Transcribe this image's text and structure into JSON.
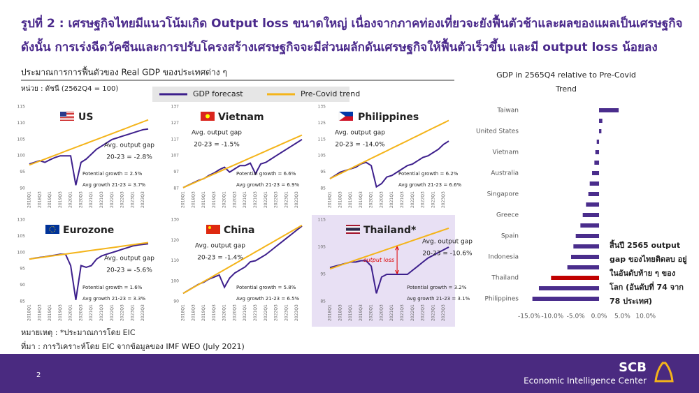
{
  "header": {
    "title_lines": [
      "รูปที่ 2 : เศรษฐกิจไทยมีแนวโน้มเกิด Output loss ขนาดใหญ่ เนื่องจากภาคท่องเที่ยวจะยังฟื้นตัวช้าและผลของแผลเป็นเศรษฐกิจ",
      "ดังนั้น การเร่งฉีดวัคซีนและการปรับโครงสร้างเศรษฐกิจจะมีส่วนผลักดันเศรษฐกิจให้ฟื้นตัวเร็วขึ้น และมี output loss น้อยลง"
    ],
    "subtitle": "ประมาณการการฟื้นตัวของ Real GDP ของประเทศต่าง ๆ",
    "unit": "หน่วย : ดัชนี (2562Q4 = 100)"
  },
  "legend": [
    {
      "name": "GDP forecast",
      "color": "#3d1f8c"
    },
    {
      "name": "Pre-Covid trend",
      "color": "#f4b41a"
    }
  ],
  "notes": [
    "หมายเหตุ : *ประมาณการโดย EIC",
    "ที่มา : การวิเคราะห์โดย EIC จากข้อมูลของ IMF WEO (July 2021)"
  ],
  "footer": {
    "page": "2",
    "brand": "SCB",
    "unit": "Economic Intelligence Center"
  },
  "chart_data": [
    {
      "type": "line",
      "title": "US",
      "categories": [
        "2018Q1",
        null,
        "2018Q3",
        null,
        "2019Q1",
        null,
        "2019Q3",
        null,
        "2020Q1",
        null,
        "2020Q3",
        null,
        "2021Q1",
        null,
        "2021Q3",
        null,
        "2022Q1",
        null,
        "2022Q3",
        null,
        "2023Q1",
        null,
        "2023Q3",
        null
      ],
      "series": [
        {
          "values": [
            97.5,
            98,
            98.5,
            98,
            98.8,
            99.5,
            100,
            100,
            100,
            91,
            98,
            99,
            100.5,
            102,
            103,
            104,
            105,
            105.5,
            106,
            106.5,
            107,
            107.5,
            108,
            108.2
          ]
        },
        {
          "values": [
            97.2,
            97.8,
            98.4,
            99,
            99.6,
            100.2,
            100.8,
            101.4,
            102,
            102.6,
            103.2,
            103.8,
            104.4,
            105,
            105.6,
            106.2,
            106.8,
            107.4,
            108,
            108.6,
            109.2,
            109.8,
            110.4,
            111
          ]
        }
      ],
      "ylim": [
        90,
        115
      ],
      "yticks": [
        90,
        95,
        100,
        105,
        110,
        115
      ],
      "annotations": {
        "gap_label": "Avg. output gap",
        "gap": "20-23 = -2.8%",
        "potential": "Potential growth = 2.5%",
        "growth": "Avg growth 21-23 = 3.7%"
      }
    },
    {
      "type": "line",
      "title": "Vietnam",
      "categories": [
        "2018Q1",
        null,
        "2018Q3",
        null,
        "2019Q1",
        null,
        "2019Q3",
        null,
        "2020Q1",
        null,
        "2020Q3",
        null,
        "2021Q1",
        null,
        "2021Q3",
        null,
        "2022Q1",
        null,
        "2022Q3",
        null,
        "2023Q1",
        null,
        "2023Q3",
        null
      ],
      "series": [
        {
          "values": [
            87.5,
            89,
            90.5,
            92,
            93,
            95,
            96.5,
            98.5,
            100,
            97,
            99,
            101,
            101,
            102.5,
            96,
            102,
            103,
            105,
            107,
            109,
            111,
            113,
            115,
            117
          ]
        },
        {
          "values": [
            87.5,
            88.9,
            90.3,
            91.7,
            93.1,
            94.5,
            95.9,
            97.3,
            98.7,
            100.1,
            101.5,
            102.9,
            104.3,
            105.7,
            107.1,
            108.5,
            109.9,
            111.3,
            112.7,
            114.1,
            115.5,
            116.9,
            118.3,
            119.7
          ]
        }
      ],
      "ylim": [
        87,
        137
      ],
      "yticks": [
        87,
        97,
        107,
        117,
        127,
        137
      ],
      "annotations": {
        "gap_label": "Avg. output gap",
        "gap": "20-23 = -1.5%",
        "potential": "Potential growth = 6.6%",
        "growth": "Avg growth 21-23 = 6.9%"
      }
    },
    {
      "type": "line",
      "title": "Philippines",
      "categories": [
        "2018Q1",
        null,
        "2018Q3",
        null,
        "2019Q1",
        null,
        "2019Q3",
        null,
        "2020Q1",
        null,
        "2020Q3",
        null,
        "2021Q1",
        null,
        "2021Q3",
        null,
        "2022Q1",
        null,
        "2022Q3",
        null,
        "2023Q1",
        null,
        "2023Q3",
        null
      ],
      "series": [
        {
          "values": [
            91,
            93,
            95,
            96,
            97,
            98,
            100,
            101,
            99,
            86,
            88,
            92,
            93,
            95,
            97,
            99,
            100,
            102,
            104,
            105,
            107,
            109,
            112,
            114
          ]
        },
        {
          "values": [
            91,
            92.55,
            94.1,
            95.65,
            97.2,
            98.75,
            100.3,
            101.85,
            103.4,
            104.95,
            106.5,
            108.05,
            109.6,
            111.15,
            112.7,
            114.25,
            115.8,
            117.35,
            118.9,
            120.45,
            122,
            123.55,
            125.1,
            126.65
          ]
        }
      ],
      "ylim": [
        85,
        135
      ],
      "yticks": [
        85,
        95,
        105,
        115,
        125,
        135
      ],
      "annotations": {
        "gap_label": "Avg. output gap",
        "gap": "20-23 = -14.0%",
        "potential": "Potential growth = 6.2%",
        "growth": "Avg growth 21-23 = 6.6%"
      }
    },
    {
      "type": "line",
      "title": "Eurozone",
      "categories": [
        "2018Q1",
        null,
        "2018Q3",
        null,
        "2019Q1",
        null,
        "2019Q3",
        null,
        "2020Q1",
        null,
        "2020Q3",
        null,
        "2021Q1",
        null,
        "2021Q3",
        null,
        "2022Q1",
        null,
        "2022Q3",
        null,
        "2023Q1",
        null,
        "2023Q3",
        null
      ],
      "series": [
        {
          "values": [
            98,
            98.3,
            98.5,
            98.7,
            99,
            99.2,
            99.5,
            99.5,
            96,
            85.5,
            96,
            95.5,
            96,
            98,
            99,
            99.5,
            100,
            100.5,
            101,
            101.5,
            102,
            102.3,
            102.5,
            102.7
          ]
        },
        {
          "values": [
            98,
            98.22,
            98.44,
            98.66,
            98.88,
            99.1,
            99.32,
            99.54,
            99.76,
            99.98,
            100.2,
            100.42,
            100.64,
            100.86,
            101.08,
            101.3,
            101.52,
            101.74,
            101.96,
            102.18,
            102.4,
            102.62,
            102.84,
            103.06
          ]
        }
      ],
      "ylim": [
        85,
        110
      ],
      "yticks": [
        85,
        90,
        95,
        100,
        105,
        110
      ],
      "annotations": {
        "gap_label": "Avg. output gap",
        "gap": "20-23 = -5.6%",
        "potential": "Potential growth = 1.6%",
        "growth": "Avg growth 21-23 = 3.3%"
      }
    },
    {
      "type": "line",
      "title": "China",
      "categories": [
        "2018Q1",
        null,
        "2018Q3",
        null,
        "2019Q1",
        null,
        "2019Q3",
        null,
        "2020Q1",
        null,
        "2020Q3",
        null,
        "2021Q1",
        null,
        "2021Q3",
        null,
        "2022Q1",
        null,
        "2022Q3",
        null,
        "2023Q1",
        null,
        "2023Q3",
        null
      ],
      "series": [
        {
          "values": [
            94,
            95.5,
            97,
            98.5,
            99.5,
            101,
            102,
            103,
            97,
            101.5,
            104,
            105.5,
            107,
            109.5,
            110,
            111.5,
            113,
            115,
            117,
            119,
            121,
            123,
            125,
            127
          ]
        },
        {
          "values": [
            94,
            95.45,
            96.9,
            98.35,
            99.8,
            101.25,
            102.7,
            104.15,
            105.6,
            107.05,
            108.5,
            109.95,
            111.4,
            112.85,
            114.3,
            115.75,
            117.2,
            118.65,
            120.1,
            121.55,
            123,
            124.45,
            125.9,
            127.35
          ]
        }
      ],
      "ylim": [
        90,
        130
      ],
      "yticks": [
        90,
        100,
        110,
        120,
        130
      ],
      "annotations": {
        "gap_label": "Avg. output gap",
        "gap": "20-23 = -1.4%",
        "potential": "Potential growth = 5.8%",
        "growth": "Avg growth 21-23 = 6.5%"
      }
    },
    {
      "type": "line",
      "title": "Thailand*",
      "categories": [
        "2018Q1",
        null,
        "2018Q3",
        null,
        "2019Q1",
        null,
        "2019Q3",
        null,
        "2020Q1",
        null,
        "2020Q3",
        null,
        "2021Q1",
        null,
        "2021Q3",
        null,
        "2022Q1",
        null,
        "2022Q3",
        null,
        "2023Q1",
        null,
        "2023Q3",
        null
      ],
      "series": [
        {
          "values": [
            97.5,
            98,
            98.5,
            99,
            99.5,
            99.5,
            100,
            100,
            98,
            88,
            94,
            95,
            95,
            95,
            95,
            95,
            96.5,
            98,
            99.5,
            101,
            102,
            103,
            104,
            105
          ]
        },
        {
          "values": [
            97,
            97.65,
            98.3,
            98.95,
            99.6,
            100.25,
            100.9,
            101.55,
            102.2,
            102.85,
            103.5,
            104.15,
            104.8,
            105.45,
            106.1,
            106.75,
            107.4,
            108.05,
            108.7,
            109.35,
            110,
            110.65,
            111.3,
            111.95
          ]
        }
      ],
      "ylim": [
        85,
        115
      ],
      "yticks": [
        85,
        95,
        105,
        115
      ],
      "annotations": {
        "gap_label": "Avg. output gap",
        "gap": "20-23 = -10.6%",
        "potential": "Potential growth = 3.2%",
        "growth": "Avg growth 21-23 = 3.1%",
        "loss_label": "output loss"
      }
    },
    {
      "type": "barh",
      "title": "GDP in 2565Q4 relative to Pre-Covid Trend",
      "categories": [
        "Taiwan",
        null,
        "United States",
        null,
        "Vietnam",
        null,
        "Australia",
        null,
        "Singapore",
        null,
        "Greece",
        null,
        "Spain",
        null,
        "Indonesia",
        null,
        "Thailand",
        null,
        "Philippines"
      ],
      "values": [
        4.2,
        0.7,
        0.5,
        -0.5,
        -0.8,
        -1.0,
        -1.5,
        -2.0,
        -2.3,
        -2.8,
        -3.5,
        -4.0,
        -5.0,
        -5.5,
        -6.0,
        -6.8,
        -10.3,
        -12.9,
        -14.3
      ],
      "colors": [
        "#4a2d8c",
        "#4a2d8c",
        "#4a2d8c",
        "#4a2d8c",
        "#4a2d8c",
        "#4a2d8c",
        "#4a2d8c",
        "#4a2d8c",
        "#4a2d8c",
        "#4a2d8c",
        "#4a2d8c",
        "#4a2d8c",
        "#4a2d8c",
        "#4a2d8c",
        "#4a2d8c",
        "#4a2d8c",
        "#c00000",
        "#4a2d8c",
        "#4a2d8c"
      ],
      "xlim": [
        -16,
        11
      ],
      "xticks": [
        {
          "value": -15,
          "label": "-15.0%"
        },
        {
          "value": -10,
          "label": "-10.0%"
        },
        {
          "value": -5,
          "label": "-5.0%"
        },
        {
          "value": 0,
          "label": "0.0%"
        },
        {
          "value": 5,
          "label": "5.0%"
        },
        {
          "value": 10,
          "label": "10.0%"
        }
      ],
      "annotation": "สิ้นปี 2565 output gap ของไทยติดลบ อยู่ในอันดับท้าย ๆ ของโลก (อันดับที่ 74 จาก 78 ประเทศ)"
    }
  ]
}
